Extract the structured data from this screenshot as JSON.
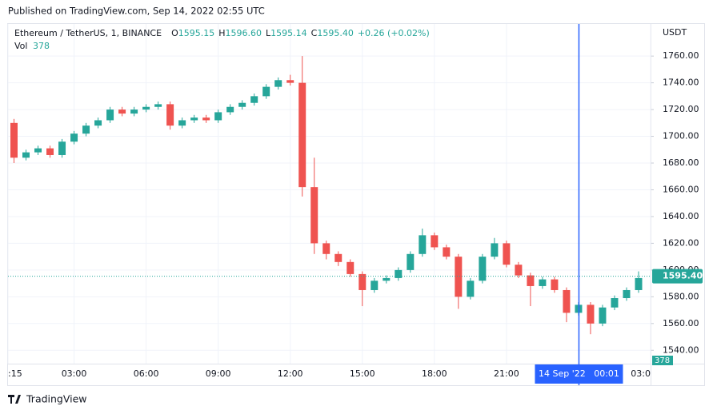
{
  "header": "Published on TradingView.com, Sep 14, 2022 02:55 UTC",
  "legend": {
    "symbol": "Ethereum / TetherUS, 1, BINANCE",
    "items": [
      {
        "key": "O",
        "value": "1595.15"
      },
      {
        "key": "H",
        "value": "1596.60"
      },
      {
        "key": "L",
        "value": "1595.14"
      },
      {
        "key": "C",
        "value": "1595.40"
      }
    ],
    "change": "+0.26 (+0.02%)",
    "volume": {
      "key": "Vol",
      "value": "378"
    }
  },
  "footer": "TradingView",
  "chart_data": {
    "type": "candlestick",
    "currency": "USDT",
    "x": [
      0.5,
      1,
      1.5,
      2,
      2.5,
      3,
      3.5,
      4,
      4.5,
      5,
      5.5,
      6,
      6.5,
      7,
      7.5,
      8,
      8.5,
      9,
      9.5,
      10,
      10.5,
      11,
      11.5,
      12,
      12.5,
      13,
      13.5,
      14,
      14.5,
      15,
      15.5,
      16,
      16.5,
      17,
      17.5,
      18,
      18.5,
      19,
      19.5,
      20,
      20.5,
      21,
      21.5,
      22,
      22.5,
      23,
      23.5,
      24,
      24.5,
      25,
      25.5,
      26,
      26.5
    ],
    "open": [
      1710,
      1684,
      1688,
      1691,
      1686,
      1696,
      1702,
      1708,
      1712,
      1720,
      1717,
      1720,
      1722,
      1724,
      1708,
      1712,
      1714,
      1712,
      1718,
      1722,
      1725,
      1730,
      1737,
      1742,
      1740,
      1662,
      1620,
      1612,
      1606,
      1597,
      1585,
      1592,
      1594,
      1600,
      1612,
      1626,
      1617,
      1610,
      1580,
      1592,
      1610,
      1620,
      1604,
      1596,
      1588,
      1593,
      1585,
      1568,
      1574,
      1560,
      1572,
      1579,
      1585
    ],
    "high": [
      1713,
      1690,
      1693,
      1693,
      1698,
      1704,
      1710,
      1714,
      1722,
      1722,
      1722,
      1724,
      1726,
      1726,
      1714,
      1716,
      1716,
      1720,
      1724,
      1727,
      1732,
      1739,
      1744,
      1746,
      1760,
      1684,
      1622,
      1614,
      1608,
      1599,
      1594,
      1596,
      1602,
      1614,
      1631,
      1628,
      1619,
      1612,
      1594,
      1612,
      1624,
      1622,
      1606,
      1598,
      1595,
      1595,
      1587,
      1576,
      1576,
      1574,
      1581,
      1587,
      1599
    ],
    "low": [
      1680,
      1682,
      1686,
      1684,
      1684,
      1694,
      1700,
      1706,
      1710,
      1715,
      1715,
      1718,
      1720,
      1705,
      1706,
      1710,
      1710,
      1710,
      1716,
      1720,
      1723,
      1728,
      1735,
      1738,
      1655,
      1612,
      1608,
      1603,
      1595,
      1573,
      1583,
      1590,
      1592,
      1598,
      1610,
      1615,
      1608,
      1571,
      1578,
      1590,
      1608,
      1602,
      1594,
      1573,
      1586,
      1583,
      1561,
      1566,
      1552,
      1558,
      1570,
      1577,
      1583
    ],
    "close": [
      1684,
      1688,
      1691,
      1686,
      1696,
      1702,
      1708,
      1712,
      1720,
      1717,
      1720,
      1722,
      1724,
      1708,
      1712,
      1714,
      1712,
      1718,
      1722,
      1725,
      1730,
      1737,
      1742,
      1740,
      1662,
      1620,
      1612,
      1606,
      1597,
      1585,
      1592,
      1594,
      1600,
      1612,
      1626,
      1617,
      1610,
      1580,
      1592,
      1610,
      1620,
      1604,
      1596,
      1588,
      1593,
      1585,
      1568,
      1574,
      1560,
      1572,
      1579,
      1585,
      1594
    ],
    "up_color": "#26a69a",
    "down_color": "#ef5350",
    "xlim": [
      0.25,
      27
    ],
    "ylim": [
      1530,
      1784
    ],
    "xticks": [
      {
        "value": 0.25,
        "label": ":15"
      },
      {
        "value": 3,
        "label": "03:00"
      },
      {
        "value": 6,
        "label": "06:00"
      },
      {
        "value": 9,
        "label": "09:00"
      },
      {
        "value": 12,
        "label": "12:00"
      },
      {
        "value": 15,
        "label": "15:00"
      },
      {
        "value": 18,
        "label": "18:00"
      },
      {
        "value": 21,
        "label": "21:00"
      },
      {
        "value": 27,
        "label": "03:0"
      }
    ],
    "yticks": [
      {
        "value": 1540,
        "label": "1540.00"
      },
      {
        "value": 1560,
        "label": "1560.00"
      },
      {
        "value": 1580,
        "label": "1580.00"
      },
      {
        "value": 1600,
        "label": "1600.00"
      },
      {
        "value": 1620,
        "label": "1620.00"
      },
      {
        "value": 1640,
        "label": "1640.00"
      },
      {
        "value": 1660,
        "label": "1660.00"
      },
      {
        "value": 1680,
        "label": "1680.00"
      },
      {
        "value": 1700,
        "label": "1700.00"
      },
      {
        "value": 1720,
        "label": "1720.00"
      },
      {
        "value": 1740,
        "label": "1740.00"
      },
      {
        "value": 1760,
        "label": "1760.00"
      }
    ],
    "grid": true,
    "last_price": {
      "value": 1595.4,
      "label": "1595.40"
    },
    "crosshair": {
      "value": 24.017,
      "label": "14 Sep '22   00:01"
    }
  }
}
